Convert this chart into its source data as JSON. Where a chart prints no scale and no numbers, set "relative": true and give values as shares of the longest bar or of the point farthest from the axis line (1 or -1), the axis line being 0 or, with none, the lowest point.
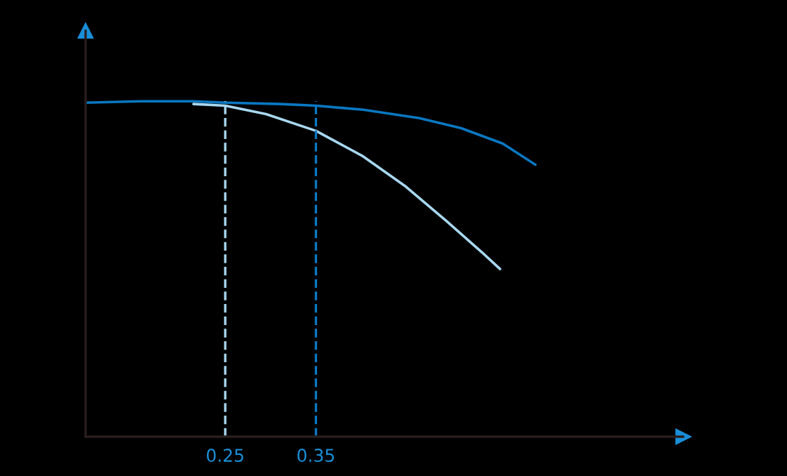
{
  "chart_data": {
    "type": "line",
    "relative": true,
    "xlim": [
      0.096,
      0.755
    ],
    "xticks": [
      0.25,
      0.35
    ],
    "series": [
      {
        "color": "#0a78c2",
        "x": [
          0.096,
          0.156,
          0.215,
          0.25,
          0.31,
          0.35,
          0.402,
          0.464,
          0.51,
          0.556,
          0.592
        ],
        "values": [
          0.996,
          1,
          1,
          0.996,
          0.992,
          0.987,
          0.975,
          0.95,
          0.92,
          0.874,
          0.811
        ]
      },
      {
        "color": "#a8d8f0",
        "x": [
          0.215,
          0.25,
          0.295,
          0.35,
          0.402,
          0.448,
          0.494,
          0.533,
          0.553
        ],
        "values": [
          0.992,
          0.987,
          0.962,
          0.912,
          0.836,
          0.748,
          0.643,
          0.55,
          0.5
        ]
      }
    ],
    "ref_lines": [
      {
        "axis": "x",
        "value": 0.25,
        "color": "#a8d8f0",
        "line_style": "dashed"
      },
      {
        "axis": "x",
        "value": 0.35,
        "color": "#0a78c2",
        "line_style": "dashed"
      }
    ],
    "grid": false,
    "legend": false,
    "marker": "none",
    "line_style": "solid"
  }
}
